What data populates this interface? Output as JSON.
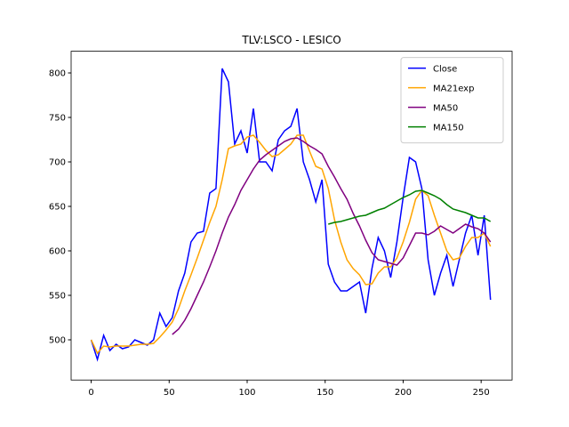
{
  "chart_data": {
    "type": "line",
    "title": "TLV:LSCO - LESICO",
    "x": [
      0,
      4,
      8,
      12,
      16,
      20,
      24,
      28,
      32,
      36,
      40,
      44,
      48,
      52,
      56,
      60,
      64,
      68,
      72,
      76,
      80,
      84,
      88,
      92,
      96,
      100,
      104,
      108,
      112,
      116,
      120,
      124,
      128,
      132,
      136,
      140,
      144,
      148,
      152,
      156,
      160,
      164,
      168,
      172,
      176,
      180,
      184,
      188,
      192,
      196,
      200,
      204,
      208,
      212,
      216,
      220,
      224,
      228,
      232,
      236,
      240,
      244,
      248,
      252,
      256
    ],
    "series": [
      {
        "name": "Close",
        "color": "#0000ff",
        "values": [
          500,
          478,
          505,
          488,
          495,
          490,
          492,
          500,
          497,
          494,
          500,
          530,
          515,
          525,
          555,
          575,
          610,
          620,
          622,
          665,
          670,
          805,
          790,
          720,
          735,
          710,
          760,
          700,
          700,
          690,
          725,
          735,
          740,
          760,
          700,
          680,
          655,
          680,
          585,
          565,
          555,
          555,
          560,
          565,
          530,
          580,
          615,
          600,
          570,
          610,
          660,
          705,
          700,
          670,
          590,
          550,
          575,
          595,
          560,
          590,
          620,
          640,
          595,
          640,
          545
        ]
      },
      {
        "name": "MA21exp",
        "color": "#ffa500",
        "values": [
          500,
          485,
          493,
          492,
          493,
          493,
          493,
          494,
          495,
          495,
          496,
          503,
          511,
          520,
          535,
          555,
          573,
          592,
          612,
          632,
          650,
          680,
          715,
          718,
          720,
          728,
          730,
          722,
          713,
          706,
          708,
          714,
          720,
          730,
          730,
          712,
          695,
          692,
          670,
          635,
          610,
          590,
          580,
          573,
          562,
          563,
          575,
          582,
          582,
          592,
          610,
          632,
          658,
          668,
          662,
          640,
          620,
          600,
          590,
          592,
          605,
          615,
          615,
          620,
          605
        ]
      },
      {
        "name": "MA50",
        "color": "#800080",
        "values": [
          null,
          null,
          null,
          null,
          null,
          null,
          null,
          null,
          null,
          null,
          null,
          null,
          null,
          506,
          512,
          522,
          535,
          550,
          565,
          582,
          600,
          620,
          638,
          652,
          668,
          680,
          692,
          702,
          708,
          713,
          718,
          723,
          726,
          727,
          723,
          718,
          714,
          709,
          695,
          683,
          670,
          658,
          642,
          628,
          612,
          598,
          590,
          588,
          586,
          584,
          592,
          606,
          620,
          620,
          618,
          622,
          628,
          624,
          620,
          625,
          630,
          627,
          625,
          620,
          610
        ]
      },
      {
        "name": "MA150",
        "color": "#008000",
        "values": [
          null,
          null,
          null,
          null,
          null,
          null,
          null,
          null,
          null,
          null,
          null,
          null,
          null,
          null,
          null,
          null,
          null,
          null,
          null,
          null,
          null,
          null,
          null,
          null,
          null,
          null,
          null,
          null,
          null,
          null,
          null,
          null,
          null,
          null,
          null,
          null,
          null,
          null,
          630,
          632,
          633,
          635,
          637,
          639,
          640,
          643,
          646,
          648,
          652,
          656,
          660,
          663,
          667,
          668,
          665,
          662,
          658,
          652,
          647,
          645,
          643,
          640,
          637,
          637,
          633
        ]
      }
    ],
    "xlim": [
      -12.85,
      269.85
    ],
    "ylim": [
      454.8,
      824.4
    ],
    "xticks": [
      0,
      50,
      100,
      150,
      200,
      250
    ],
    "yticks": [
      500,
      550,
      600,
      650,
      700,
      750,
      800
    ],
    "legend": "upper right",
    "grid": false
  }
}
